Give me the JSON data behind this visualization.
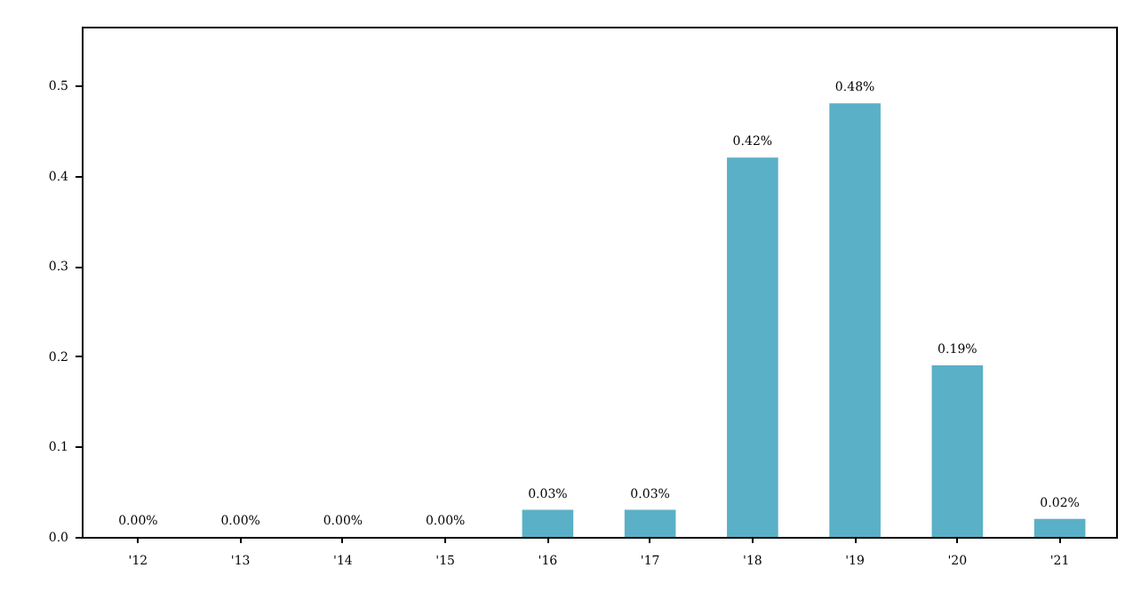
{
  "chart_data": {
    "type": "bar",
    "categories": [
      "'12",
      "'13",
      "'14",
      "'15",
      "'16",
      "'17",
      "'18",
      "'19",
      "'20",
      "'21"
    ],
    "values": [
      0.0,
      0.0,
      0.0,
      0.0,
      0.03,
      0.03,
      0.42,
      0.48,
      0.19,
      0.02
    ],
    "value_labels": [
      "0.00%",
      "0.00%",
      "0.00%",
      "0.00%",
      "0.03%",
      "0.03%",
      "0.42%",
      "0.48%",
      "0.19%",
      "0.02%"
    ],
    "color": "#5ab0c6",
    "ylim": [
      0,
      0.565
    ],
    "yticks": [
      {
        "value": 0,
        "label": "0.0"
      },
      {
        "value": 0.1,
        "label": "0.1"
      },
      {
        "value": 0.2,
        "label": "0.2"
      },
      {
        "value": 0.3,
        "label": "0.3"
      },
      {
        "value": 0.4,
        "label": "0.4"
      },
      {
        "value": 0.5,
        "label": "0.5"
      }
    ],
    "grid": false
  }
}
